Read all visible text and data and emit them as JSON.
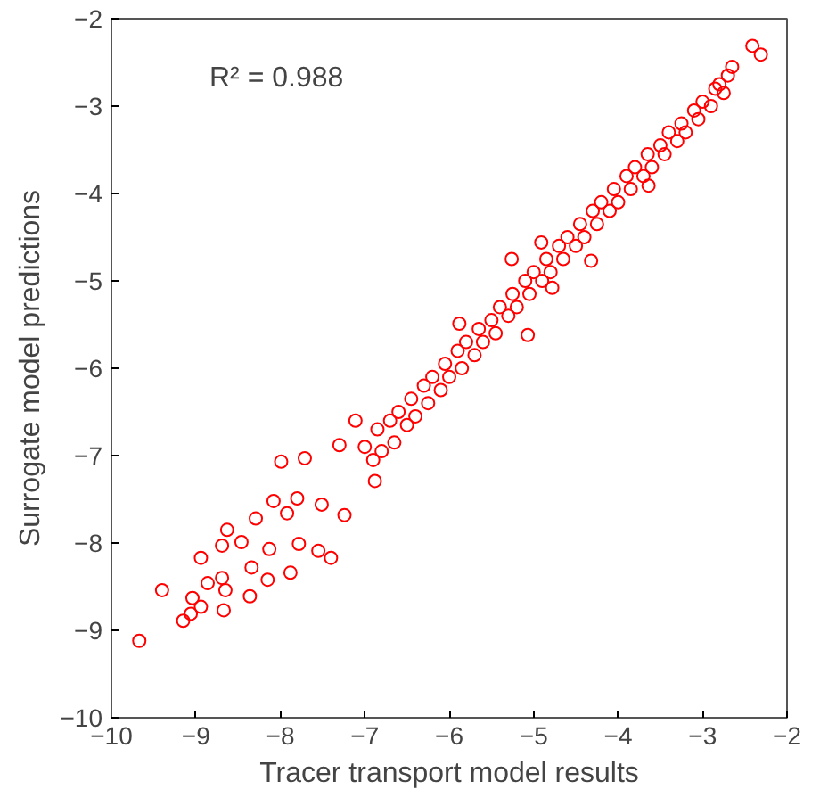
{
  "chart_data": {
    "type": "scatter",
    "xlabel": "Tracer transport model results",
    "ylabel": "Surrogate model predictions",
    "annotations": [
      "R² = 0.988"
    ],
    "xlim": [
      -10,
      -2
    ],
    "ylim": [
      -10,
      -2
    ],
    "xticks": [
      -10,
      -9,
      -8,
      -7,
      -6,
      -5,
      -4,
      -3,
      -2
    ],
    "yticks": [
      -10,
      -9,
      -8,
      -7,
      -6,
      -5,
      -4,
      -3,
      -2
    ],
    "grid": false,
    "marker": "circle",
    "series": [
      {
        "color": "#ff0000",
        "x": [
          -9.67,
          -9.4,
          -9.15,
          -9.06,
          -8.94,
          -8.67,
          -9.04,
          -8.86,
          -8.69,
          -8.65,
          -8.94,
          -8.69,
          -8.63,
          -8.46,
          -8.36,
          -8.34,
          -8.29,
          -8.13,
          -8.15,
          -7.99,
          -8.08,
          -7.88,
          -7.78,
          -7.71,
          -7.55,
          -7.4,
          -7.92,
          -7.8,
          -7.51,
          -7.24,
          -7.3,
          -7.11,
          -6.88,
          -4.32,
          -5.26,
          -4.91,
          -3.64,
          -5.88,
          -5.07,
          -4.78,
          -2.41,
          -2.31,
          -7.0,
          -6.9,
          -6.85,
          -6.8,
          -6.7,
          -6.65,
          -6.6,
          -6.5,
          -6.45,
          -6.4,
          -6.3,
          -6.25,
          -6.2,
          -6.1,
          -6.05,
          -6.0,
          -5.9,
          -5.85,
          -5.8,
          -5.7,
          -5.65,
          -5.6,
          -5.5,
          -5.45,
          -5.4,
          -5.3,
          -5.25,
          -5.2,
          -5.1,
          -5.05,
          -5.0,
          -4.9,
          -4.85,
          -4.8,
          -4.7,
          -4.65,
          -4.6,
          -4.5,
          -4.45,
          -4.4,
          -4.3,
          -4.25,
          -4.2,
          -4.1,
          -4.05,
          -4.0,
          -3.9,
          -3.85,
          -3.8,
          -3.7,
          -3.65,
          -3.6,
          -3.5,
          -3.45,
          -3.4,
          -3.3,
          -3.25,
          -3.2,
          -3.1,
          -3.05,
          -3.0,
          -2.9,
          -2.85,
          -2.8,
          -2.75,
          -2.7,
          -2.65
        ],
        "values": [
          -9.12,
          -8.54,
          -8.89,
          -8.81,
          -8.73,
          -8.77,
          -8.63,
          -8.46,
          -8.4,
          -8.54,
          -8.17,
          -8.03,
          -7.85,
          -7.99,
          -8.61,
          -8.28,
          -7.72,
          -8.07,
          -8.42,
          -7.07,
          -7.52,
          -8.34,
          -8.01,
          -7.03,
          -8.09,
          -8.17,
          -7.66,
          -7.49,
          -7.56,
          -7.68,
          -6.88,
          -6.6,
          -7.29,
          -4.77,
          -4.75,
          -4.56,
          -3.91,
          -5.49,
          -5.62,
          -5.08,
          -2.31,
          -2.41,
          -6.9,
          -7.05,
          -6.7,
          -6.95,
          -6.6,
          -6.85,
          -6.5,
          -6.65,
          -6.35,
          -6.55,
          -6.2,
          -6.4,
          -6.1,
          -6.25,
          -5.95,
          -6.1,
          -5.8,
          -6.0,
          -5.7,
          -5.85,
          -5.55,
          -5.7,
          -5.45,
          -5.6,
          -5.3,
          -5.4,
          -5.15,
          -5.3,
          -5.0,
          -5.15,
          -4.9,
          -5.0,
          -4.75,
          -4.9,
          -4.6,
          -4.75,
          -4.5,
          -4.6,
          -4.35,
          -4.5,
          -4.2,
          -4.35,
          -4.1,
          -4.2,
          -3.95,
          -4.1,
          -3.8,
          -3.95,
          -3.7,
          -3.8,
          -3.55,
          -3.7,
          -3.45,
          -3.55,
          -3.3,
          -3.4,
          -3.2,
          -3.3,
          -3.05,
          -3.15,
          -2.95,
          -3.0,
          -2.8,
          -2.75,
          -2.85,
          -2.65,
          -2.55
        ]
      }
    ]
  }
}
